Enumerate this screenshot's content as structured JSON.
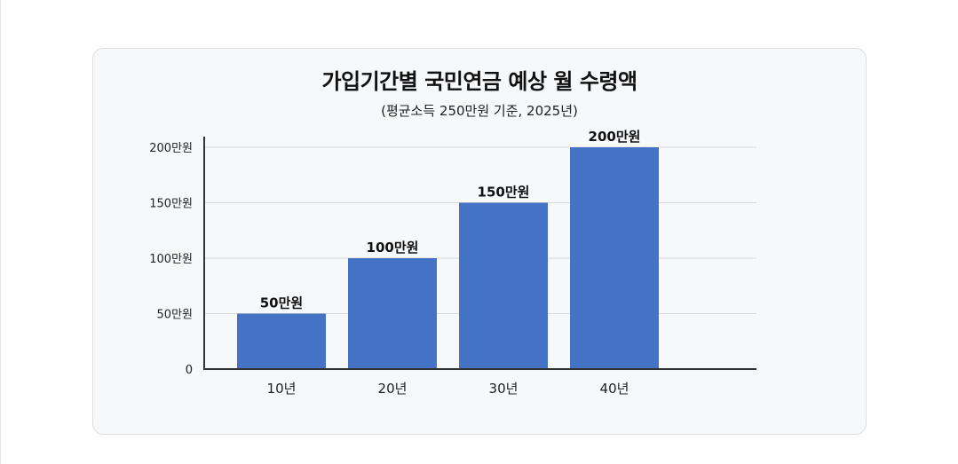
{
  "chart_data": {
    "type": "bar",
    "title": "가입기간별 국민연금 예상 월 수령액",
    "subtitle": "(평균소득 250만원 기준, 2025년)",
    "categories": [
      "10년",
      "20년",
      "30년",
      "40년"
    ],
    "values": [
      50,
      100,
      150,
      200
    ],
    "data_labels": [
      "50만원",
      "100만원",
      "150만원",
      "200만원"
    ],
    "yticks": [
      0,
      50,
      100,
      150,
      200
    ],
    "ytick_labels": [
      "0",
      "50만원",
      "100만원",
      "150만원",
      "200만원"
    ],
    "ylim": [
      0,
      200
    ],
    "xlabel": "",
    "ylabel": "",
    "grid": true,
    "legend": "none",
    "colors": {
      "bar": "#4472c4",
      "grid": "#d9d9d9",
      "axis": "#333333"
    }
  }
}
